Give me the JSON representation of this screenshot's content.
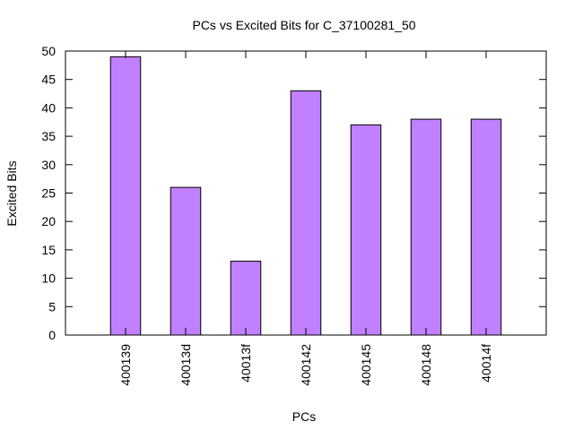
{
  "chart_data": {
    "type": "bar",
    "title": "PCs vs Excited Bits for C_37100281_50",
    "xlabel": "PCs",
    "ylabel": "Excited Bits",
    "categories": [
      "400139",
      "40013d",
      "40013f",
      "400142",
      "400145",
      "400148",
      "40014f"
    ],
    "values": [
      49,
      26,
      13,
      43,
      37,
      38,
      38
    ],
    "ylim": [
      0,
      50
    ],
    "yticks": [
      0,
      5,
      10,
      15,
      20,
      25,
      30,
      35,
      40,
      45,
      50
    ],
    "grid": false,
    "bar_color": "#c080ff",
    "bar_edge_color": "#000000"
  }
}
